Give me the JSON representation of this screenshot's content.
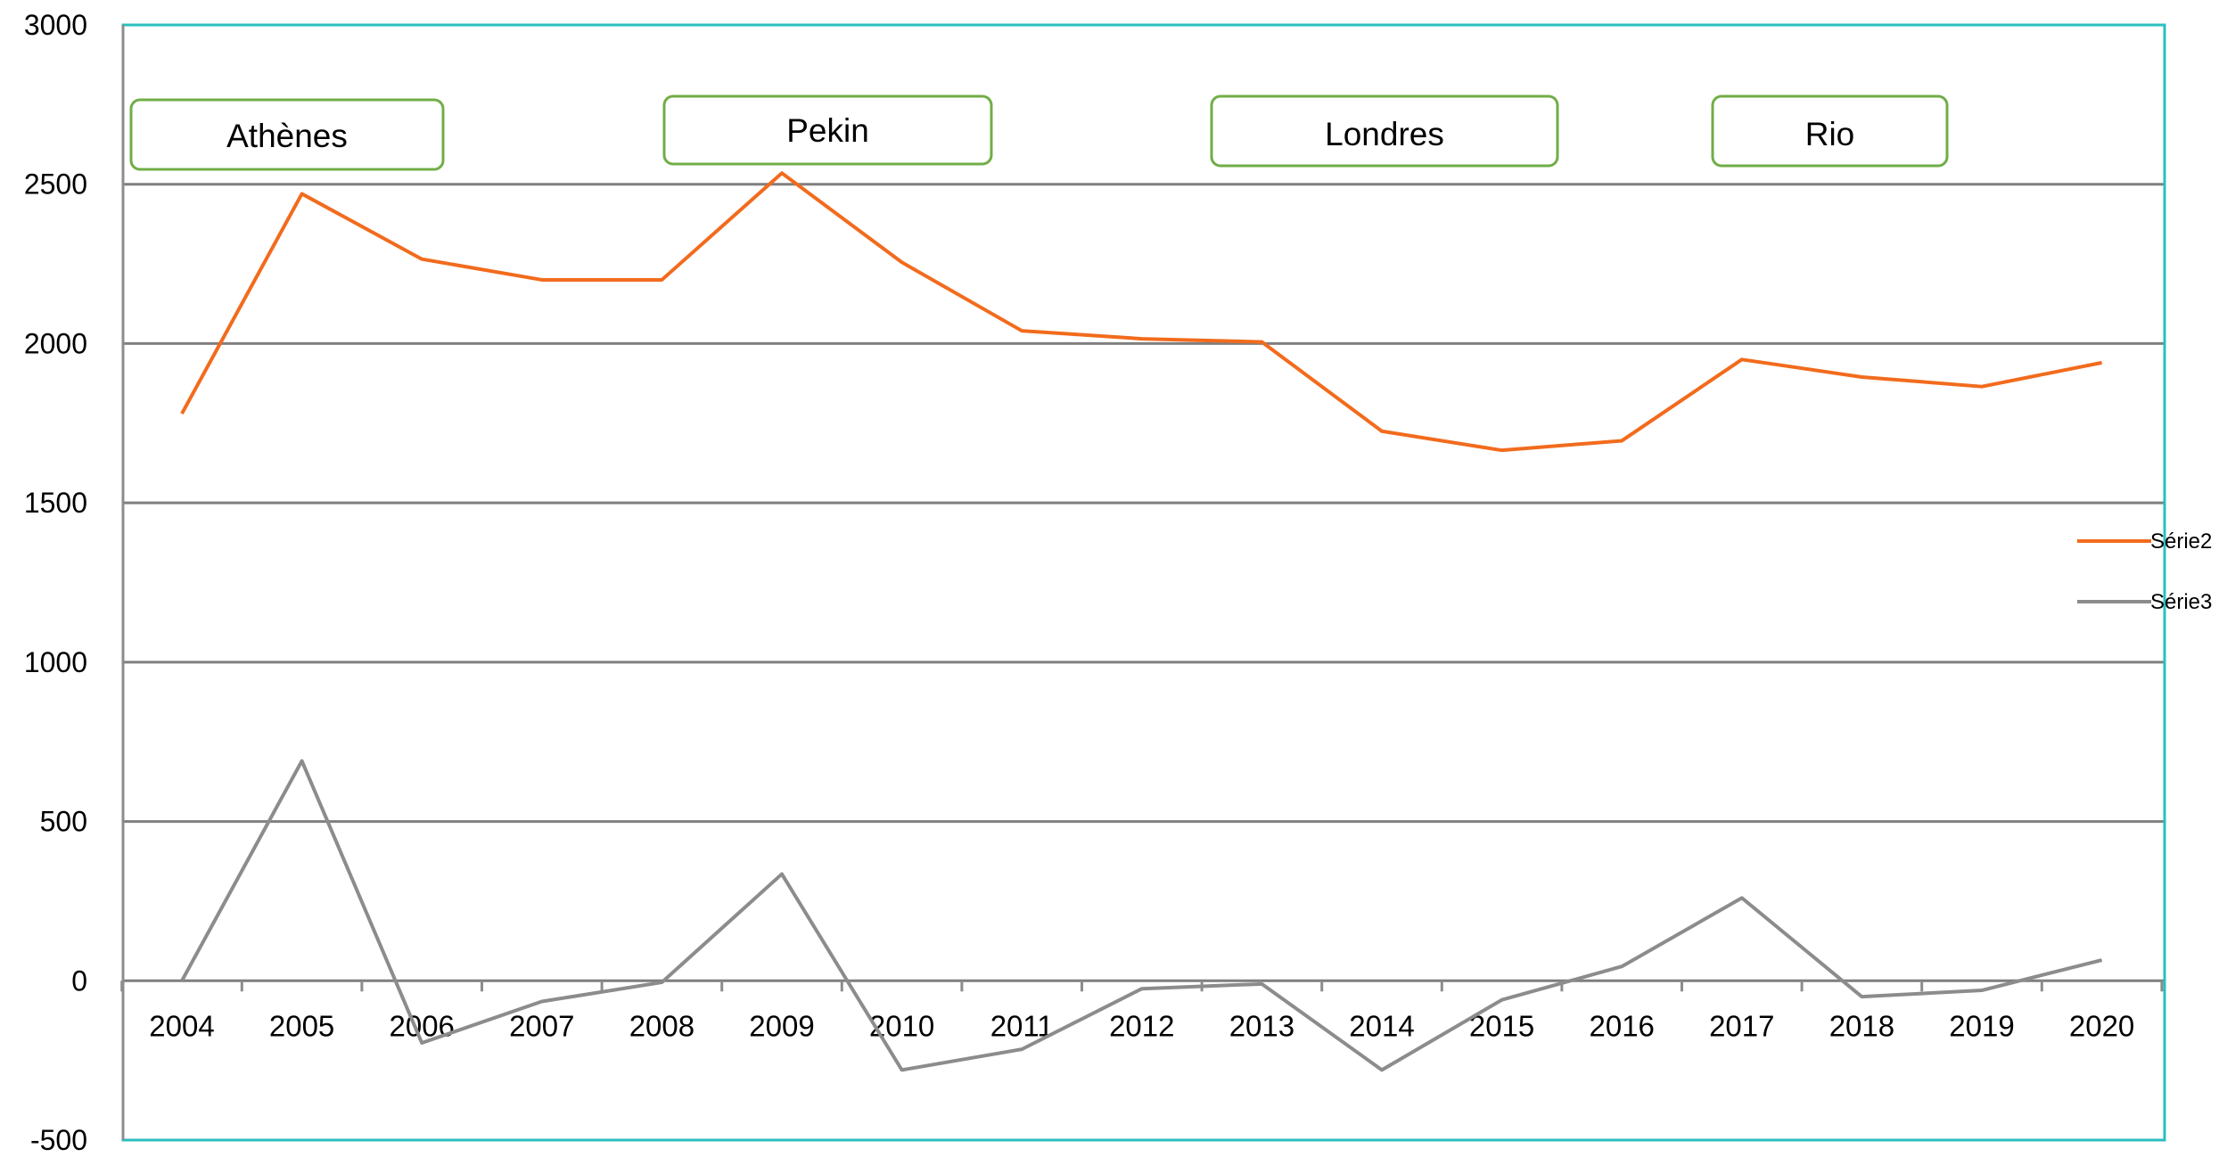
{
  "chart_data": {
    "type": "line",
    "categories": [
      "2004",
      "2005",
      "2006",
      "2007",
      "2008",
      "2009",
      "2010",
      "2011",
      "2012",
      "2013",
      "2014",
      "2015",
      "2016",
      "2017",
      "2018",
      "2019",
      "2020"
    ],
    "series": [
      {
        "name": "Série2",
        "color": "#f26b1d",
        "values": [
          1780,
          2470,
          2265,
          2200,
          2200,
          2535,
          2255,
          2040,
          2015,
          2005,
          1725,
          1665,
          1695,
          1950,
          1895,
          1865,
          1940
        ]
      },
      {
        "name": "Série3",
        "color": "#8c8c8c",
        "values": [
          0,
          690,
          -195,
          -65,
          -5,
          335,
          -280,
          -215,
          -25,
          -10,
          -280,
          -60,
          45,
          260,
          -50,
          -30,
          65
        ]
      }
    ],
    "ylim": [
      -500,
      3000
    ],
    "yticks": [
      "-500",
      "0",
      "500",
      "1000",
      "1500",
      "2000",
      "2500",
      "3000"
    ],
    "grid": true,
    "legend_position": "right",
    "annotations": [
      {
        "text": "Athènes",
        "category": "2005"
      },
      {
        "text": "Pekin",
        "category": "2009"
      },
      {
        "text": "Londres",
        "category": "2014"
      },
      {
        "text": "Rio",
        "category": "2018"
      }
    ],
    "title": "",
    "xlabel": "",
    "ylabel": ""
  }
}
